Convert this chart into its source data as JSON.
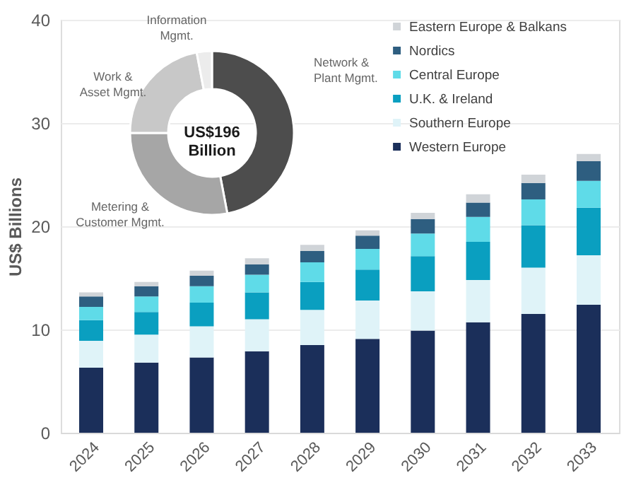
{
  "chart_data": [
    {
      "type": "bar",
      "stacked": true,
      "ylabel": "US$ Billions",
      "categories": [
        "2024",
        "2025",
        "2026",
        "2027",
        "2028",
        "2029",
        "2030",
        "2031",
        "2032",
        "2033"
      ],
      "series": [
        {
          "name": "Western Europe",
          "color": "#1b2f5a",
          "values": [
            6.3,
            6.8,
            7.3,
            7.9,
            8.5,
            9.1,
            9.9,
            10.7,
            11.5,
            12.4
          ]
        },
        {
          "name": "Southern Europe",
          "color": "#dff3f8",
          "values": [
            2.6,
            2.7,
            3.0,
            3.1,
            3.4,
            3.7,
            3.8,
            4.1,
            4.5,
            4.8
          ]
        },
        {
          "name": "U.K. & Ireland",
          "color": "#0a9fc0",
          "values": [
            2.0,
            2.2,
            2.3,
            2.6,
            2.7,
            3.0,
            3.4,
            3.7,
            4.1,
            4.6
          ]
        },
        {
          "name": "Central Europe",
          "color": "#5fdbe8",
          "values": [
            1.3,
            1.5,
            1.6,
            1.7,
            1.9,
            2.0,
            2.2,
            2.4,
            2.5,
            2.6
          ]
        },
        {
          "name": "Nordics",
          "color": "#2e5e80",
          "values": [
            1.0,
            1.0,
            1.0,
            1.0,
            1.1,
            1.3,
            1.4,
            1.4,
            1.6,
            1.9
          ]
        },
        {
          "name": "Eastern Europe & Balkans",
          "color": "#d0d4d8",
          "values": [
            0.4,
            0.4,
            0.5,
            0.6,
            0.6,
            0.5,
            0.6,
            0.8,
            0.8,
            0.7
          ]
        }
      ],
      "ylim": [
        0,
        40
      ],
      "yticks": [
        0,
        10,
        20,
        30,
        40
      ],
      "grid": "y",
      "legend": "top right"
    },
    {
      "type": "donut",
      "categories": [
        "Network & Plant Mgmt.",
        "Metering & Customer Mgmt.",
        "Work & Asset Mgmt.",
        "Information Mgmt."
      ],
      "values": [
        47,
        28,
        22,
        3
      ],
      "colors": [
        "#4d4d4d",
        "#a6a6a6",
        "#c8c8c8",
        "#ececec"
      ],
      "annotations": [
        "US$196\nBillion"
      ]
    }
  ]
}
